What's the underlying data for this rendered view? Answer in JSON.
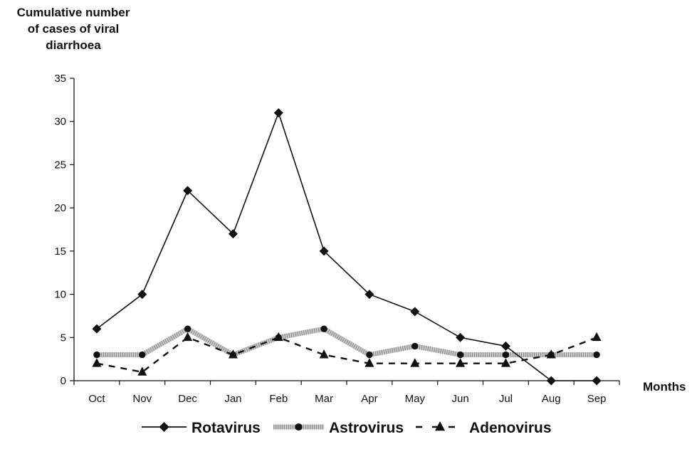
{
  "chart_data": {
    "type": "line",
    "ylabel_lines": [
      "Cumulative number",
      "of cases of viral",
      "diarrhoea"
    ],
    "xlabel": "Months",
    "categories": [
      "Oct",
      "Nov",
      "Dec",
      "Jan",
      "Feb",
      "Mar",
      "Apr",
      "May",
      "Jun",
      "Jul",
      "Aug",
      "Sep"
    ],
    "ylim": [
      0,
      35
    ],
    "yticks": [
      0,
      5,
      10,
      15,
      20,
      25,
      30,
      35
    ],
    "legend_position": "bottom",
    "series": [
      {
        "name": "Rotavirus",
        "values": [
          6,
          10,
          22,
          17,
          31,
          15,
          10,
          8,
          5,
          4,
          0,
          0
        ],
        "style": "solid",
        "marker": "diamond",
        "color": "#111111"
      },
      {
        "name": "Astrovirus",
        "values": [
          3,
          3,
          6,
          3,
          5,
          6,
          3,
          4,
          3,
          3,
          3,
          3
        ],
        "style": "dotted-band",
        "marker": "circle",
        "color": "#bdbdbd"
      },
      {
        "name": "Adenovirus",
        "values": [
          2,
          1,
          5,
          3,
          5,
          3,
          2,
          2,
          2,
          2,
          3,
          5
        ],
        "style": "dashed",
        "marker": "triangle",
        "color": "#111111"
      }
    ]
  }
}
